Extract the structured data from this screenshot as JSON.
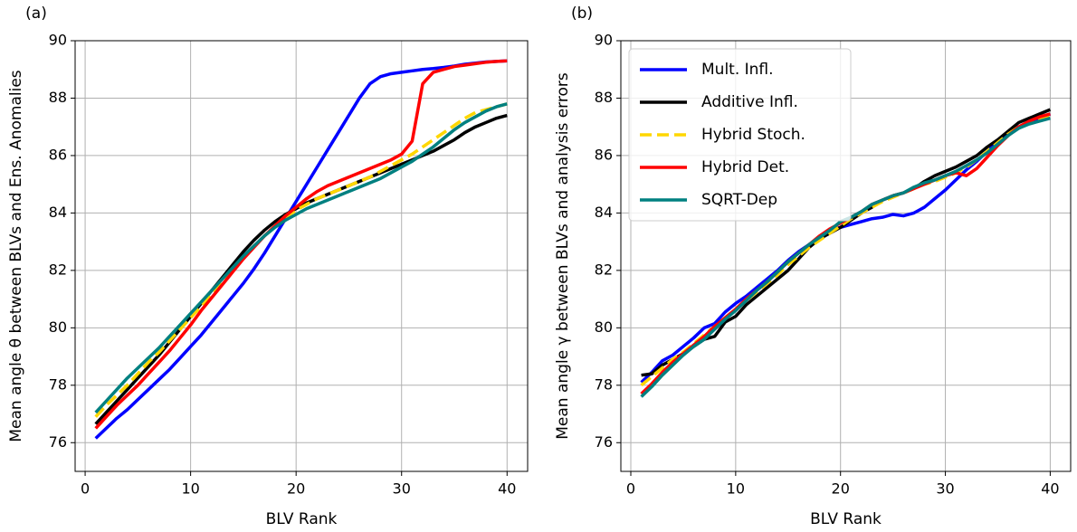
{
  "chart_data": [
    {
      "type": "line",
      "title": "(a)",
      "x_label": "BLV Rank",
      "y_label": "Mean angle θ between BLVs and Ens. Anomalies",
      "x": [
        1,
        2,
        3,
        4,
        5,
        6,
        7,
        8,
        9,
        10,
        11,
        12,
        13,
        14,
        15,
        16,
        17,
        18,
        19,
        20,
        21,
        22,
        23,
        24,
        25,
        26,
        27,
        28,
        29,
        30,
        31,
        32,
        33,
        34,
        35,
        36,
        37,
        38,
        39,
        40
      ],
      "xlim": [
        -0.95,
        41.95
      ],
      "xticks": [
        0,
        10,
        20,
        30,
        40
      ],
      "ylim": [
        75,
        90
      ],
      "yticks": [
        76,
        78,
        80,
        82,
        84,
        86,
        88,
        90
      ],
      "grid": true,
      "series": [
        {
          "color": "#0000ff",
          "linestyle": "solid",
          "values": [
            76.15,
            76.5,
            76.85,
            77.15,
            77.5,
            77.85,
            78.2,
            78.55,
            78.95,
            79.35,
            79.75,
            80.2,
            80.65,
            81.1,
            81.55,
            82.05,
            82.6,
            83.2,
            83.8,
            84.4,
            85.0,
            85.6,
            86.2,
            86.8,
            87.4,
            88.0,
            88.5,
            88.75,
            88.85,
            88.9,
            88.95,
            89.0,
            89.03,
            89.07,
            89.12,
            89.18,
            89.22,
            89.26,
            89.28,
            89.3
          ]
        },
        {
          "color": "#000000",
          "linestyle": "solid",
          "values": [
            76.65,
            77.05,
            77.45,
            77.85,
            78.25,
            78.65,
            79.05,
            79.5,
            79.95,
            80.4,
            80.85,
            81.3,
            81.75,
            82.2,
            82.65,
            83.05,
            83.4,
            83.7,
            83.95,
            84.15,
            84.35,
            84.5,
            84.65,
            84.8,
            84.95,
            85.1,
            85.25,
            85.4,
            85.55,
            85.7,
            85.85,
            86.0,
            86.15,
            86.35,
            86.55,
            86.8,
            87.0,
            87.15,
            87.3,
            87.4
          ]
        },
        {
          "color": "#ffd700",
          "linestyle": "dashed",
          "values": [
            76.9,
            77.3,
            77.65,
            78.0,
            78.4,
            78.8,
            79.15,
            79.55,
            79.95,
            80.35,
            80.75,
            81.15,
            81.6,
            82.05,
            82.45,
            82.85,
            83.2,
            83.55,
            83.85,
            84.1,
            84.3,
            84.5,
            84.65,
            84.8,
            84.95,
            85.1,
            85.25,
            85.45,
            85.65,
            85.85,
            86.05,
            86.3,
            86.55,
            86.8,
            87.05,
            87.3,
            87.5,
            87.6,
            87.7,
            87.8
          ]
        },
        {
          "color": "#ff0000",
          "linestyle": "solid",
          "values": [
            76.5,
            76.9,
            77.3,
            77.65,
            78.0,
            78.4,
            78.8,
            79.2,
            79.65,
            80.1,
            80.6,
            81.05,
            81.5,
            81.95,
            82.4,
            82.8,
            83.2,
            83.55,
            83.9,
            84.2,
            84.5,
            84.75,
            84.95,
            85.1,
            85.25,
            85.4,
            85.55,
            85.7,
            85.85,
            86.05,
            86.5,
            88.5,
            88.9,
            89.0,
            89.1,
            89.15,
            89.2,
            89.25,
            89.28,
            89.3
          ]
        },
        {
          "color": "#008080",
          "linestyle": "solid",
          "values": [
            77.05,
            77.45,
            77.85,
            78.25,
            78.6,
            78.95,
            79.3,
            79.7,
            80.1,
            80.5,
            80.9,
            81.3,
            81.7,
            82.1,
            82.5,
            82.85,
            83.2,
            83.5,
            83.75,
            83.95,
            84.15,
            84.3,
            84.45,
            84.6,
            84.75,
            84.9,
            85.05,
            85.2,
            85.4,
            85.6,
            85.8,
            86.05,
            86.3,
            86.6,
            86.9,
            87.15,
            87.35,
            87.55,
            87.7,
            87.8
          ]
        }
      ]
    },
    {
      "type": "line",
      "title": "(b)",
      "x_label": "BLV Rank",
      "y_label": "Mean angle γ between BLVs and analysis errors",
      "x": [
        1,
        2,
        3,
        4,
        5,
        6,
        7,
        8,
        9,
        10,
        11,
        12,
        13,
        14,
        15,
        16,
        17,
        18,
        19,
        20,
        21,
        22,
        23,
        24,
        25,
        26,
        27,
        28,
        29,
        30,
        31,
        32,
        33,
        34,
        35,
        36,
        37,
        38,
        39,
        40
      ],
      "xlim": [
        -0.95,
        41.95
      ],
      "xticks": [
        0,
        10,
        20,
        30,
        40
      ],
      "ylim": [
        75,
        90
      ],
      "yticks": [
        76,
        78,
        80,
        82,
        84,
        86,
        88,
        90
      ],
      "grid": true,
      "legend": "upper left",
      "series": [
        {
          "name": "Mult. Infl.",
          "color": "#0000ff",
          "linestyle": "solid",
          "values": [
            78.1,
            78.45,
            78.85,
            79.05,
            79.35,
            79.65,
            80.0,
            80.15,
            80.55,
            80.85,
            81.1,
            81.4,
            81.7,
            82.0,
            82.35,
            82.65,
            82.9,
            83.15,
            83.4,
            83.5,
            83.6,
            83.7,
            83.8,
            83.85,
            83.95,
            83.9,
            84.0,
            84.2,
            84.5,
            84.8,
            85.15,
            85.5,
            85.8,
            86.15,
            86.45,
            86.75,
            87.0,
            87.15,
            87.3,
            87.45
          ]
        },
        {
          "name": "Additive Infl.",
          "color": "#000000",
          "linestyle": "solid",
          "values": [
            78.35,
            78.4,
            78.7,
            78.9,
            79.1,
            79.35,
            79.6,
            79.7,
            80.2,
            80.4,
            80.8,
            81.1,
            81.4,
            81.7,
            82.0,
            82.4,
            82.8,
            83.1,
            83.3,
            83.5,
            83.75,
            84.0,
            84.2,
            84.45,
            84.6,
            84.7,
            84.85,
            85.1,
            85.3,
            85.45,
            85.6,
            85.8,
            86.0,
            86.3,
            86.55,
            86.85,
            87.15,
            87.3,
            87.45,
            87.6
          ]
        },
        {
          "name": "Hybrid Stoch.",
          "color": "#ffd700",
          "linestyle": "dashed",
          "values": [
            78.0,
            78.3,
            78.6,
            78.9,
            79.15,
            79.45,
            79.75,
            80.05,
            80.35,
            80.65,
            80.95,
            81.25,
            81.55,
            81.85,
            82.2,
            82.5,
            82.8,
            83.05,
            83.3,
            83.55,
            83.8,
            84.0,
            84.2,
            84.4,
            84.55,
            84.7,
            84.85,
            85.0,
            85.1,
            85.25,
            85.4,
            85.6,
            85.85,
            86.15,
            86.45,
            86.75,
            87.0,
            87.15,
            87.3,
            87.4
          ]
        },
        {
          "name": "Hybrid Det.",
          "color": "#ff0000",
          "linestyle": "solid",
          "values": [
            77.7,
            78.05,
            78.45,
            78.8,
            79.1,
            79.4,
            79.7,
            80.05,
            80.35,
            80.65,
            81.0,
            81.3,
            81.6,
            81.95,
            82.3,
            82.6,
            82.9,
            83.2,
            83.45,
            83.65,
            83.85,
            84.05,
            84.3,
            84.45,
            84.6,
            84.7,
            84.85,
            85.0,
            85.15,
            85.3,
            85.4,
            85.3,
            85.55,
            85.95,
            86.35,
            86.7,
            87.0,
            87.2,
            87.35,
            87.45
          ]
        },
        {
          "name": "SQRT-Dep",
          "color": "#008080",
          "linestyle": "solid",
          "values": [
            77.6,
            77.95,
            78.35,
            78.7,
            79.05,
            79.35,
            79.6,
            79.95,
            80.3,
            80.6,
            80.95,
            81.3,
            81.6,
            81.95,
            82.3,
            82.6,
            82.9,
            83.15,
            83.4,
            83.7,
            83.85,
            84.05,
            84.3,
            84.45,
            84.6,
            84.7,
            84.9,
            85.05,
            85.15,
            85.3,
            85.45,
            85.65,
            85.85,
            86.1,
            86.4,
            86.7,
            86.95,
            87.1,
            87.2,
            87.3
          ]
        }
      ]
    }
  ]
}
